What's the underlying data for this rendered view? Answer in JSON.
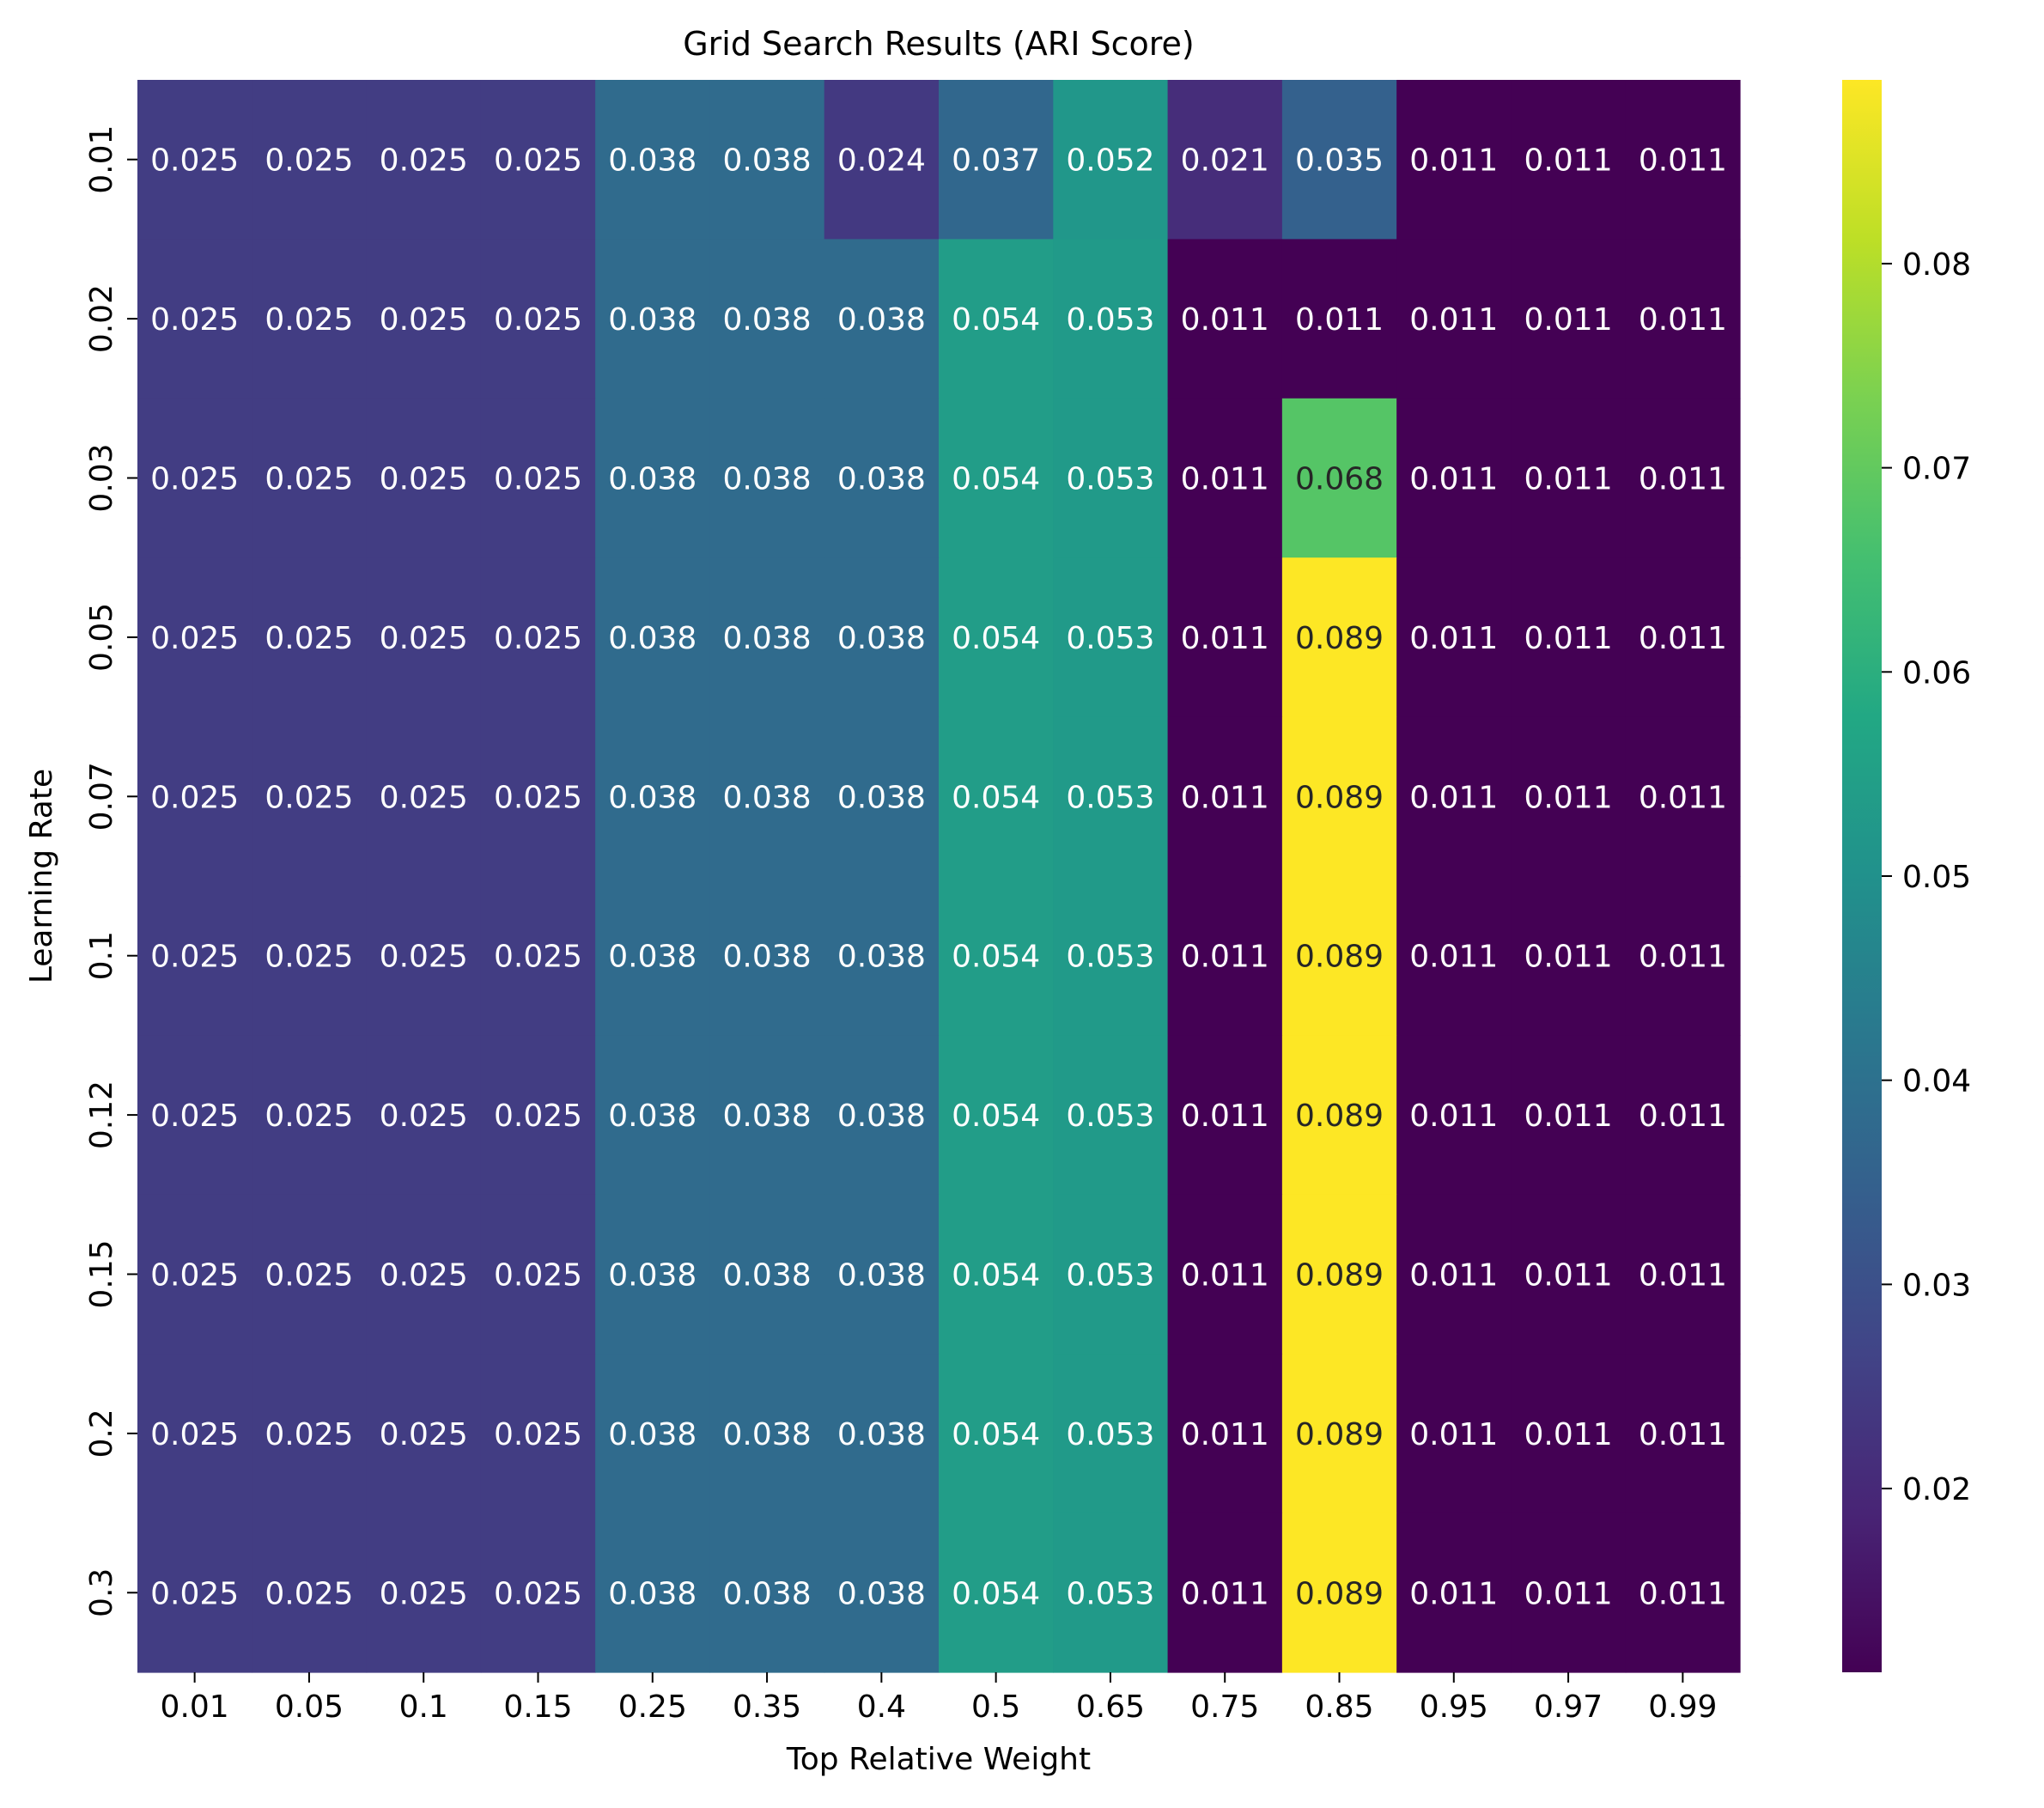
{
  "chart_data": {
    "type": "heatmap",
    "title": "Grid Search Results (ARI Score)",
    "xlabel": "Top Relative Weight",
    "ylabel": "Learning Rate",
    "x_categories": [
      "0.01",
      "0.05",
      "0.1",
      "0.15",
      "0.25",
      "0.35",
      "0.4",
      "0.5",
      "0.65",
      "0.75",
      "0.85",
      "0.95",
      "0.97",
      "0.99"
    ],
    "y_categories": [
      "0.01",
      "0.02",
      "0.03",
      "0.05",
      "0.07",
      "0.1",
      "0.12",
      "0.15",
      "0.2",
      "0.3"
    ],
    "values": [
      [
        0.025,
        0.025,
        0.025,
        0.025,
        0.038,
        0.038,
        0.024,
        0.037,
        0.052,
        0.021,
        0.035,
        0.011,
        0.011,
        0.011
      ],
      [
        0.025,
        0.025,
        0.025,
        0.025,
        0.038,
        0.038,
        0.038,
        0.054,
        0.053,
        0.011,
        0.011,
        0.011,
        0.011,
        0.011
      ],
      [
        0.025,
        0.025,
        0.025,
        0.025,
        0.038,
        0.038,
        0.038,
        0.054,
        0.053,
        0.011,
        0.068,
        0.011,
        0.011,
        0.011
      ],
      [
        0.025,
        0.025,
        0.025,
        0.025,
        0.038,
        0.038,
        0.038,
        0.054,
        0.053,
        0.011,
        0.089,
        0.011,
        0.011,
        0.011
      ],
      [
        0.025,
        0.025,
        0.025,
        0.025,
        0.038,
        0.038,
        0.038,
        0.054,
        0.053,
        0.011,
        0.089,
        0.011,
        0.011,
        0.011
      ],
      [
        0.025,
        0.025,
        0.025,
        0.025,
        0.038,
        0.038,
        0.038,
        0.054,
        0.053,
        0.011,
        0.089,
        0.011,
        0.011,
        0.011
      ],
      [
        0.025,
        0.025,
        0.025,
        0.025,
        0.038,
        0.038,
        0.038,
        0.054,
        0.053,
        0.011,
        0.089,
        0.011,
        0.011,
        0.011
      ],
      [
        0.025,
        0.025,
        0.025,
        0.025,
        0.038,
        0.038,
        0.038,
        0.054,
        0.053,
        0.011,
        0.089,
        0.011,
        0.011,
        0.011
      ],
      [
        0.025,
        0.025,
        0.025,
        0.025,
        0.038,
        0.038,
        0.038,
        0.054,
        0.053,
        0.011,
        0.089,
        0.011,
        0.011,
        0.011
      ],
      [
        0.025,
        0.025,
        0.025,
        0.025,
        0.038,
        0.038,
        0.038,
        0.054,
        0.053,
        0.011,
        0.089,
        0.011,
        0.011,
        0.011
      ]
    ],
    "colormap": "viridis",
    "vmin": 0.011,
    "vmax": 0.089,
    "colorbar_ticks": [
      "0.02",
      "0.03",
      "0.04",
      "0.05",
      "0.06",
      "0.07",
      "0.08"
    ],
    "annotation_light_color": "#ffffff",
    "annotation_dark_color": "#262626",
    "grid": false,
    "legend": "colorbar-right"
  }
}
